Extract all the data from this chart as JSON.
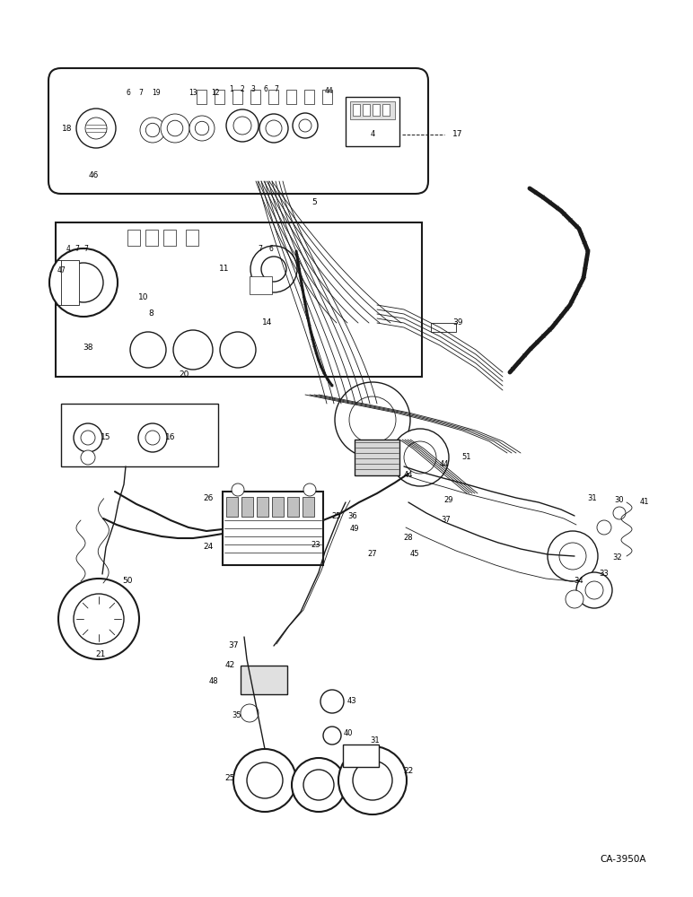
{
  "bg_color": "#ffffff",
  "line_color": "#1a1a1a",
  "fig_width": 7.72,
  "fig_height": 10.0,
  "dpi": 100,
  "watermark": "CA-3950A"
}
